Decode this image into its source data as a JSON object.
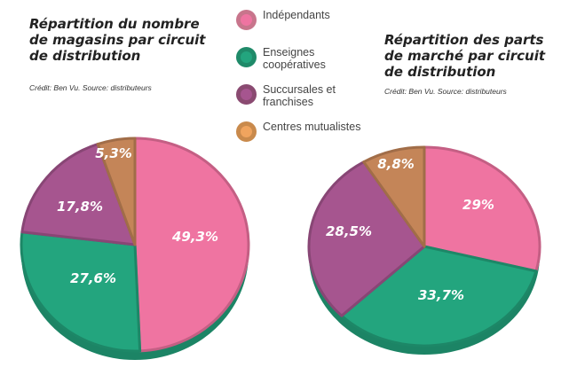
{
  "legend": [
    {
      "label": "Indépendants",
      "color": "#ef74a1",
      "border": "#c8758c"
    },
    {
      "label": "Enseignes coopératives",
      "color": "#23a57e",
      "border": "#1f8a69"
    },
    {
      "label": "Succursales et franchises",
      "color": "#a6558f",
      "border": "#8a4a71"
    },
    {
      "label": "Centres mutualistes",
      "color": "#f0a45e",
      "border": "#c98a4c"
    }
  ],
  "chart_data": [
    {
      "type": "pie",
      "title": "Répartition du nombre de magasins par circuit de distribution",
      "credit": "Crédit: Ben Vu. Source: distributeurs",
      "categories": [
        "Indépendants",
        "Enseignes coopératives",
        "Succursales et franchises",
        "Centres mutualistes"
      ],
      "values": [
        49.3,
        27.6,
        17.8,
        5.3
      ],
      "labels": [
        "49,3%",
        "27,6%",
        "17,8%",
        "5,3%"
      ],
      "colors": [
        "#ef74a1",
        "#23a57e",
        "#a6558f",
        "#c48558"
      ]
    },
    {
      "type": "pie",
      "title": "Répartition des parts de marché par circuit de distribution",
      "credit": "Crédit: Ben Vu. Source: distributeurs",
      "categories": [
        "Indépendants",
        "Enseignes coopératives",
        "Succursales et franchises",
        "Centres mutualistes"
      ],
      "values": [
        29,
        33.7,
        28.5,
        8.8
      ],
      "labels": [
        "29%",
        "33,7%",
        "28,5%",
        "8,8%"
      ],
      "colors": [
        "#ef74a1",
        "#23a57e",
        "#a6558f",
        "#c48558"
      ]
    }
  ]
}
